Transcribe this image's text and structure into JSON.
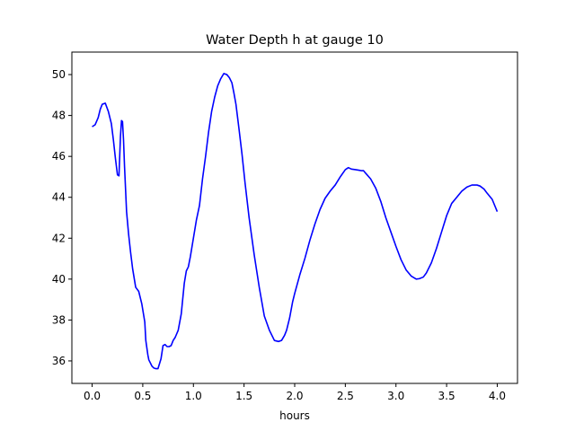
{
  "chart_data": {
    "type": "line",
    "title": "Water Depth h at gauge 10",
    "xlabel": "hours",
    "ylabel": "",
    "xlim": [
      -0.2,
      4.2
    ],
    "ylim": [
      34.9,
      51.1
    ],
    "xticks": [
      0.0,
      0.5,
      1.0,
      1.5,
      2.0,
      2.5,
      3.0,
      3.5,
      4.0
    ],
    "xtick_labels": [
      "0.0",
      "0.5",
      "1.0",
      "1.5",
      "2.0",
      "2.5",
      "3.0",
      "3.5",
      "4.0"
    ],
    "yticks": [
      36,
      38,
      40,
      42,
      44,
      46,
      48,
      50
    ],
    "ytick_labels": [
      "36",
      "38",
      "40",
      "42",
      "44",
      "46",
      "48",
      "50"
    ],
    "grid": false,
    "series": [
      {
        "color": "#0000ff",
        "x": [
          0.0,
          0.03,
          0.06,
          0.08,
          0.1,
          0.13,
          0.16,
          0.19,
          0.21,
          0.23,
          0.25,
          0.265,
          0.28,
          0.29,
          0.3,
          0.31,
          0.32,
          0.34,
          0.36,
          0.38,
          0.4,
          0.43,
          0.46,
          0.49,
          0.52,
          0.53,
          0.55,
          0.56,
          0.57,
          0.59,
          0.61,
          0.63,
          0.65,
          0.68,
          0.7,
          0.72,
          0.74,
          0.76,
          0.78,
          0.8,
          0.82,
          0.85,
          0.88,
          0.91,
          0.93,
          0.95,
          0.97,
          1.0,
          1.03,
          1.06,
          1.09,
          1.12,
          1.15,
          1.18,
          1.21,
          1.24,
          1.27,
          1.3,
          1.33,
          1.355,
          1.38,
          1.4,
          1.42,
          1.45,
          1.48,
          1.51,
          1.55,
          1.6,
          1.65,
          1.7,
          1.75,
          1.8,
          1.84,
          1.87,
          1.9,
          1.92,
          1.95,
          1.98,
          2.0,
          2.05,
          2.1,
          2.15,
          2.2,
          2.25,
          2.3,
          2.35,
          2.4,
          2.45,
          2.5,
          2.53,
          2.56,
          2.6,
          2.64,
          2.66,
          2.68,
          2.7,
          2.75,
          2.8,
          2.85,
          2.9,
          2.95,
          3.0,
          3.05,
          3.1,
          3.15,
          3.2,
          3.23,
          3.27,
          3.3,
          3.35,
          3.4,
          3.45,
          3.5,
          3.55,
          3.6,
          3.65,
          3.7,
          3.75,
          3.8,
          3.83,
          3.87,
          3.9,
          3.95,
          4.0
        ],
        "y": [
          47.45,
          47.55,
          47.9,
          48.3,
          48.55,
          48.6,
          48.2,
          47.6,
          46.8,
          45.9,
          45.1,
          45.05,
          47.0,
          47.75,
          47.7,
          46.8,
          45.5,
          43.3,
          42.2,
          41.3,
          40.5,
          39.6,
          39.4,
          38.8,
          37.9,
          37.0,
          36.3,
          36.05,
          35.95,
          35.75,
          35.65,
          35.62,
          35.62,
          36.1,
          36.75,
          36.8,
          36.7,
          36.7,
          36.75,
          37.0,
          37.15,
          37.5,
          38.3,
          39.8,
          40.4,
          40.6,
          41.1,
          42.0,
          42.9,
          43.6,
          44.9,
          46.0,
          47.2,
          48.2,
          48.9,
          49.45,
          49.8,
          50.05,
          50.0,
          49.85,
          49.6,
          49.1,
          48.55,
          47.35,
          46.1,
          44.7,
          43.0,
          41.2,
          39.6,
          38.2,
          37.5,
          37.0,
          36.95,
          37.0,
          37.25,
          37.5,
          38.1,
          38.9,
          39.3,
          40.2,
          41.0,
          41.9,
          42.7,
          43.4,
          43.95,
          44.3,
          44.6,
          45.0,
          45.35,
          45.45,
          45.38,
          45.35,
          45.32,
          45.3,
          45.3,
          45.18,
          44.9,
          44.45,
          43.8,
          43.0,
          42.3,
          41.6,
          40.95,
          40.45,
          40.15,
          40.0,
          40.02,
          40.1,
          40.3,
          40.8,
          41.5,
          42.3,
          43.1,
          43.7,
          44.0,
          44.3,
          44.5,
          44.6,
          44.6,
          44.55,
          44.4,
          44.2,
          43.9,
          43.3
        ]
      }
    ]
  }
}
